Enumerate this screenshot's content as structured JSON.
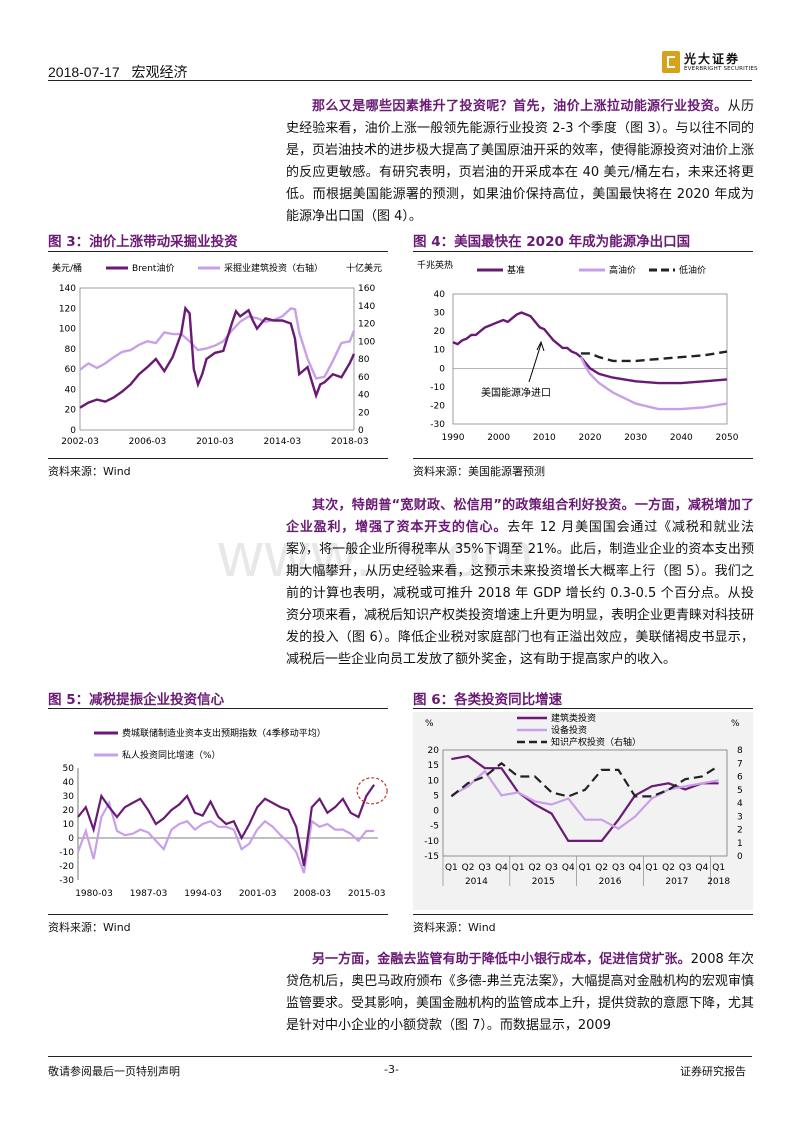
{
  "header": {
    "date": "2018-07-17",
    "section": "宏观经济",
    "logo_cn": "光大证券",
    "logo_en": "EVERBRIGHT SECURITIES"
  },
  "paragraphs": {
    "p1_bold": "那么又是哪些因素推升了投资呢？首先，油价上涨拉动能源行业投资。",
    "p1_text": "从历史经验来看，油价上涨一般领先能源行业投资 2-3 个季度（图 3）。与以往不同的是，页岩油技术的进步极大提高了美国原油开采的效率，使得能源投资对油价上涨的反应更敏感。有研究表明，页岩油的开采成本在 40 美元/桶左右，未来还将更低。而根据美国能源署的预测，如果油价保持高位，美国最快将在 2020 年成为能源净出口国（图 4）。",
    "p2_bold": "其次，特朗普“宽财政、松信用”的政策组合利好投资。一方面，减税增加了企业盈利，增强了资本开支的信心。",
    "p2_text": "去年 12 月美国国会通过《减税和就业法案》，将一般企业所得税率从 35%下调至 21%。此后，制造业企业的资本支出预期大幅攀升，从历史经验来看，这预示未来投资增长大概率上行（图 5）。我们之前的计算也表明，减税或可推升 2018 年 GDP 增长约 0.3-0.5 个百分点。从投资分项来看，减税后知识产权类投资增速上升更为明显，表明企业更青睐对科技研发的投入（图 6）。降低企业税对家庭部门也有正溢出效应，美联储褐皮书显示，减税后一些企业向员工发放了额外奖金，这有助于提高家户的收入。",
    "p3_bold": "另一方面，金融去监管有助于降低中小银行成本，促进信贷扩张。",
    "p3_text": "2008 年次贷危机后，奥巴马政府颁布《多德-弗兰克法案》，大幅提高对金融机构的宏观审慎监管要求。受其影响，美国金融机构的监管成本上升，提供贷款的意愿下降，尤其是针对中小企业的小额贷款（图 7）。而数据显示，2009"
  },
  "figures": {
    "fig3_title": "图 3：油价上涨带动采掘业投资",
    "fig4_title": "图 4：美国最快在 2020 年成为能源净出口国",
    "fig5_title": "图 5：减税提振企业投资信心",
    "fig6_title": "图 6：各类投资同比增速",
    "fig3_source": "资料来源：Wind",
    "fig4_source": "资料来源：美国能源署预测",
    "fig5_source": "资料来源：Wind",
    "fig6_source": "资料来源：Wind"
  },
  "watermark": "www.                   .com",
  "footer": {
    "left": "敬请参阅最后一页特别声明",
    "center": "-3-",
    "right": "证券研究报告"
  },
  "colors": {
    "accent": "#6a1a75",
    "light_purple": "#c8a0e8",
    "dash": "#222222"
  },
  "chart_data": [
    {
      "id": "fig3",
      "type": "line",
      "ylabel_left": "美元/桶",
      "ylabel_right": "十亿美元",
      "ylim_left": [
        0,
        140
      ],
      "ylim_right": [
        0,
        160
      ],
      "yticks_left": [
        0,
        20,
        40,
        60,
        80,
        100,
        120,
        140
      ],
      "yticks_right": [
        0,
        20,
        40,
        60,
        80,
        100,
        120,
        140,
        160
      ],
      "xlim": [
        2002.0,
        2018.25
      ],
      "xticks": [
        "2002-03",
        "2006-03",
        "2010-03",
        "2014-03",
        "2018-03"
      ],
      "xtick_values": [
        2002.0,
        2006.0,
        2010.0,
        2014.0,
        2018.0
      ],
      "series": [
        {
          "name": "Brent油价",
          "axis": "left",
          "color": "#6a1a75",
          "x": [
            2002.0,
            2002.5,
            2003.0,
            2003.5,
            2004.0,
            2004.5,
            2005.0,
            2005.5,
            2006.0,
            2006.5,
            2007.0,
            2007.5,
            2008.0,
            2008.25,
            2008.5,
            2008.75,
            2009.0,
            2009.25,
            2009.5,
            2010.0,
            2010.5,
            2011.0,
            2011.25,
            2011.5,
            2012.0,
            2012.25,
            2012.5,
            2013.0,
            2013.5,
            2014.0,
            2014.5,
            2014.75,
            2015.0,
            2015.5,
            2015.75,
            2016.0,
            2016.25,
            2016.5,
            2017.0,
            2017.5,
            2018.0,
            2018.25
          ],
          "values": [
            22,
            27,
            30,
            28,
            32,
            38,
            45,
            55,
            62,
            70,
            58,
            72,
            95,
            120,
            115,
            60,
            45,
            55,
            70,
            76,
            78,
            105,
            117,
            112,
            118,
            108,
            100,
            110,
            108,
            108,
            105,
            90,
            55,
            62,
            48,
            34,
            45,
            47,
            55,
            52,
            66,
            75
          ]
        },
        {
          "name": "采掘业建筑投资（右轴）",
          "axis": "right",
          "color": "#c8a0e8",
          "x": [
            2002.0,
            2002.5,
            2003.0,
            2003.5,
            2004.0,
            2004.5,
            2005.0,
            2005.5,
            2006.0,
            2006.5,
            2007.0,
            2007.5,
            2008.0,
            2008.5,
            2009.0,
            2009.5,
            2010.0,
            2010.5,
            2011.0,
            2011.5,
            2012.0,
            2012.5,
            2013.0,
            2013.5,
            2014.0,
            2014.5,
            2014.75,
            2015.0,
            2015.5,
            2016.0,
            2016.5,
            2017.0,
            2017.5,
            2018.0,
            2018.25
          ],
          "values": [
            68,
            75,
            70,
            75,
            82,
            88,
            90,
            96,
            100,
            98,
            110,
            108,
            108,
            100,
            90,
            92,
            95,
            100,
            112,
            122,
            128,
            126,
            122,
            124,
            128,
            137,
            136,
            110,
            80,
            58,
            60,
            78,
            98,
            100,
            112
          ]
        }
      ]
    },
    {
      "id": "fig4",
      "type": "line",
      "ylabel": "千兆英热",
      "ylim": [
        -30,
        40
      ],
      "yticks": [
        -30,
        -20,
        -10,
        0,
        10,
        20,
        30,
        40
      ],
      "xlim": [
        1990,
        2050
      ],
      "xticks": [
        1990,
        2000,
        2010,
        2020,
        2030,
        2040,
        2050
      ],
      "annotation": "美国能源净进口",
      "series": [
        {
          "name": "基准",
          "color": "#6a1a75",
          "style": "solid",
          "x": [
            1990,
            1991,
            1992,
            1993,
            1994,
            1995,
            1996,
            1997,
            1998,
            1999,
            2000,
            2001,
            2002,
            2003,
            2004,
            2005,
            2006,
            2007,
            2008,
            2009,
            2010,
            2011,
            2012,
            2013,
            2014,
            2015,
            2016,
            2017,
            2018,
            2019,
            2020,
            2022,
            2025,
            2030,
            2035,
            2040,
            2045,
            2050
          ],
          "values": [
            14,
            13,
            15,
            16,
            18,
            18,
            20,
            22,
            23,
            24,
            25,
            26,
            25,
            27,
            29,
            30,
            29,
            28,
            25,
            22,
            21,
            18,
            15,
            13,
            11,
            11,
            9,
            8,
            6,
            3,
            0,
            -3,
            -5,
            -7,
            -8,
            -8,
            -7,
            -6
          ]
        },
        {
          "name": "高油价",
          "color": "#c8a0e8",
          "style": "solid",
          "x": [
            2018,
            2019,
            2020,
            2022,
            2025,
            2030,
            2035,
            2040,
            2045,
            2050
          ],
          "values": [
            6,
            1,
            -3,
            -8,
            -13,
            -19,
            -22,
            -22,
            -21,
            -19
          ]
        },
        {
          "name": "低油价",
          "color": "#222222",
          "style": "dashed",
          "x": [
            2018,
            2019,
            2020,
            2022,
            2025,
            2030,
            2035,
            2040,
            2045,
            2050
          ],
          "values": [
            8,
            8,
            8,
            6,
            4,
            4,
            5,
            6,
            7,
            9
          ]
        }
      ]
    },
    {
      "id": "fig5",
      "type": "line",
      "ylim": [
        -30,
        50
      ],
      "yticks": [
        -30,
        -20,
        -10,
        0,
        10,
        20,
        30,
        40,
        50
      ],
      "xlim": [
        1980.0,
        2018.5
      ],
      "xticks": [
        "1980-03",
        "1987-03",
        "1994-03",
        "2001-03",
        "2008-03",
        "2015-03"
      ],
      "xtick_values": [
        1980.0,
        1987.0,
        1994.0,
        2001.0,
        2008.0,
        2015.0
      ],
      "series": [
        {
          "name": "费城联储制造业资本支出预期指数（4季移动平均）",
          "color": "#6a1a75",
          "x": [
            1980,
            1981,
            1982,
            1983,
            1984,
            1985,
            1986,
            1987,
            1988,
            1989,
            1990,
            1991,
            1992,
            1993,
            1994,
            1995,
            1996,
            1997,
            1998,
            1999,
            2000,
            2001,
            2002,
            2003,
            2004,
            2005,
            2006,
            2007,
            2008,
            2009,
            2010,
            2011,
            2012,
            2013,
            2014,
            2015,
            2016,
            2017,
            2018
          ],
          "values": [
            15,
            22,
            6,
            30,
            22,
            15,
            22,
            25,
            28,
            20,
            10,
            14,
            20,
            24,
            30,
            18,
            16,
            26,
            15,
            10,
            12,
            0,
            10,
            22,
            28,
            25,
            22,
            20,
            8,
            -20,
            22,
            28,
            18,
            22,
            28,
            18,
            15,
            30,
            38
          ]
        },
        {
          "name": "私人投资同比增速（%）",
          "color": "#c8a0e8",
          "x": [
            1980,
            1981,
            1982,
            1983,
            1984,
            1985,
            1986,
            1987,
            1988,
            1989,
            1990,
            1991,
            1992,
            1993,
            1994,
            1995,
            1996,
            1997,
            1998,
            1999,
            2000,
            2001,
            2002,
            2003,
            2004,
            2005,
            2006,
            2007,
            2008,
            2009,
            2010,
            2011,
            2012,
            2013,
            2014,
            2015,
            2016,
            2017,
            2018
          ],
          "values": [
            -10,
            5,
            -15,
            15,
            25,
            5,
            2,
            3,
            6,
            4,
            -2,
            -8,
            6,
            10,
            12,
            6,
            10,
            12,
            8,
            8,
            6,
            -8,
            -4,
            6,
            12,
            8,
            2,
            -3,
            -10,
            -25,
            12,
            8,
            10,
            6,
            6,
            3,
            -2,
            5,
            5
          ]
        }
      ]
    },
    {
      "id": "fig6",
      "type": "line",
      "ylabel_left": "%",
      "ylabel_right": "%",
      "ylim_left": [
        -15,
        20
      ],
      "ylim_right": [
        0,
        8
      ],
      "yticks_left": [
        -15,
        -10,
        -5,
        0,
        5,
        10,
        15,
        20
      ],
      "yticks_right": [
        0,
        1,
        2,
        3,
        4,
        5,
        6,
        7,
        8
      ],
      "categories": [
        "Q1",
        "Q2",
        "Q3",
        "Q4",
        "Q1",
        "Q2",
        "Q3",
        "Q4",
        "Q1",
        "Q2",
        "Q3",
        "Q4",
        "Q1",
        "Q2",
        "Q3",
        "Q4",
        "Q1"
      ],
      "year_labels": [
        "2014",
        "2015",
        "2016",
        "2017",
        "2018"
      ],
      "series": [
        {
          "name": "建筑类投资",
          "axis": "left",
          "color": "#6a1a75",
          "values": [
            17,
            18,
            14,
            14,
            6,
            2,
            -1,
            -10,
            -10,
            -10,
            -3,
            5,
            8,
            9,
            7,
            9,
            9
          ]
        },
        {
          "name": "设备投资",
          "axis": "left",
          "color": "#c8a0e8",
          "values": [
            5,
            8,
            13,
            5,
            6,
            3,
            2,
            4,
            -3,
            -3,
            -6,
            -2,
            4,
            7,
            8,
            9,
            10
          ]
        },
        {
          "name": "知识产权投资（右轴）",
          "axis": "right",
          "color": "#222222",
          "values": [
            4.5,
            5.5,
            6,
            7,
            6,
            6,
            4.8,
            4.5,
            5,
            6.5,
            6.5,
            4.5,
            4.5,
            5,
            5.8,
            6,
            6.8
          ]
        }
      ]
    }
  ]
}
